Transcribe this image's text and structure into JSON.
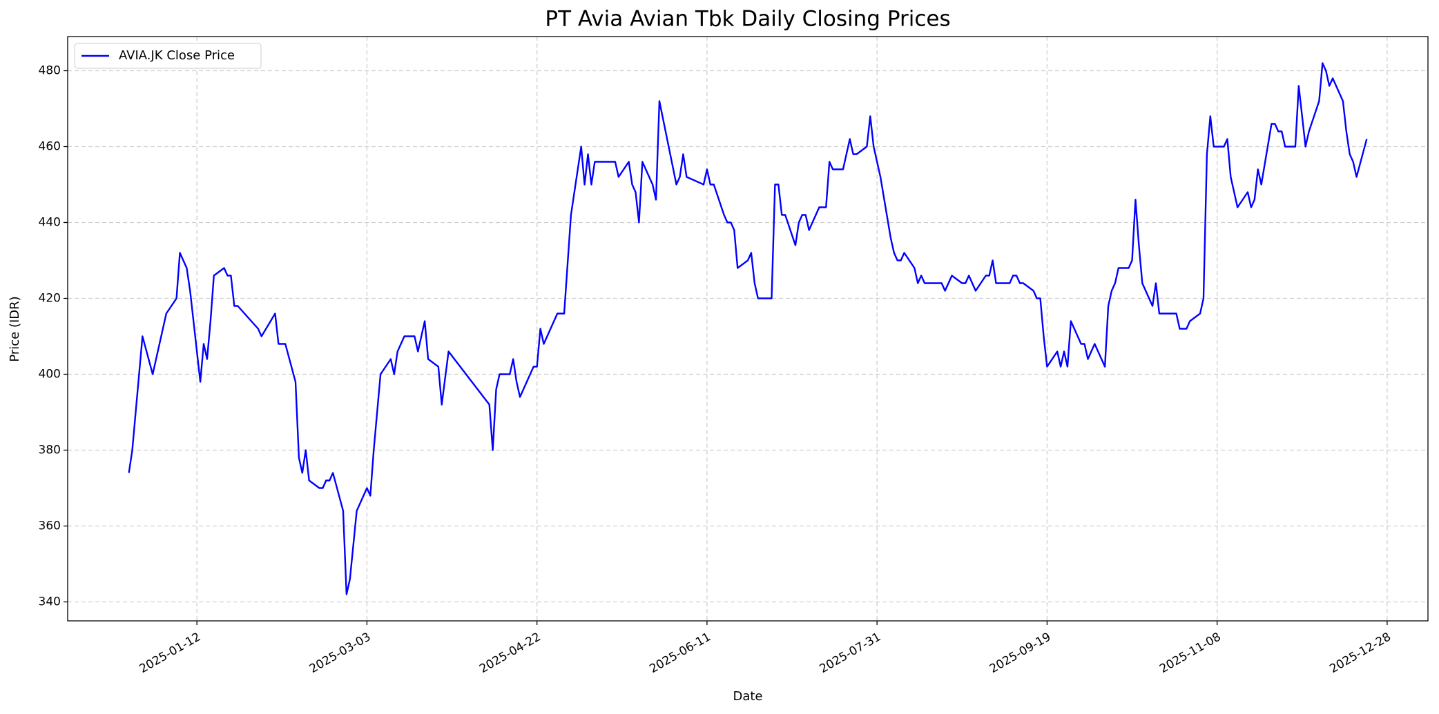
{
  "chart_data": {
    "type": "line",
    "title": "PT Avia Avian Tbk Daily Closing Prices",
    "x_label": "Date",
    "y_label": "Price (IDR)",
    "x": [
      "2024-12-23",
      "2024-12-24",
      "2024-12-27",
      "2024-12-30",
      "2025-01-03",
      "2025-01-06",
      "2025-01-07",
      "2025-01-09",
      "2025-01-10",
      "2025-01-13",
      "2025-01-14",
      "2025-01-15",
      "2025-01-16",
      "2025-01-17",
      "2025-01-20",
      "2025-01-21",
      "2025-01-22",
      "2025-01-23",
      "2025-01-24",
      "2025-01-30",
      "2025-01-31",
      "2025-02-04",
      "2025-02-05",
      "2025-02-07",
      "2025-02-10",
      "2025-02-11",
      "2025-02-12",
      "2025-02-13",
      "2025-02-14",
      "2025-02-17",
      "2025-02-18",
      "2025-02-19",
      "2025-02-20",
      "2025-02-21",
      "2025-02-24",
      "2025-02-25",
      "2025-02-26",
      "2025-02-28",
      "2025-03-03",
      "2025-03-04",
      "2025-03-05",
      "2025-03-07",
      "2025-03-10",
      "2025-03-11",
      "2025-03-12",
      "2025-03-14",
      "2025-03-17",
      "2025-03-18",
      "2025-03-20",
      "2025-03-21",
      "2025-03-24",
      "2025-03-25",
      "2025-03-27",
      "2025-04-08",
      "2025-04-09",
      "2025-04-10",
      "2025-04-11",
      "2025-04-14",
      "2025-04-15",
      "2025-04-16",
      "2025-04-17",
      "2025-04-21",
      "2025-04-22",
      "2025-04-23",
      "2025-04-24",
      "2025-04-28",
      "2025-04-30",
      "2025-05-02",
      "2025-05-05",
      "2025-05-06",
      "2025-05-07",
      "2025-05-08",
      "2025-05-09",
      "2025-05-15",
      "2025-05-16",
      "2025-05-19",
      "2025-05-20",
      "2025-05-21",
      "2025-05-22",
      "2025-05-23",
      "2025-05-26",
      "2025-05-27",
      "2025-05-28",
      "2025-06-02",
      "2025-06-03",
      "2025-06-04",
      "2025-06-05",
      "2025-06-10",
      "2025-06-11",
      "2025-06-12",
      "2025-06-13",
      "2025-06-16",
      "2025-06-17",
      "2025-06-18",
      "2025-06-19",
      "2025-06-20",
      "2025-06-23",
      "2025-06-24",
      "2025-06-25",
      "2025-06-26",
      "2025-06-30",
      "2025-07-01",
      "2025-07-02",
      "2025-07-03",
      "2025-07-04",
      "2025-07-07",
      "2025-07-08",
      "2025-07-09",
      "2025-07-10",
      "2025-07-11",
      "2025-07-14",
      "2025-07-16",
      "2025-07-17",
      "2025-07-18",
      "2025-07-21",
      "2025-07-23",
      "2025-07-24",
      "2025-07-25",
      "2025-07-28",
      "2025-07-29",
      "2025-07-30",
      "2025-08-01",
      "2025-08-04",
      "2025-08-05",
      "2025-08-06",
      "2025-08-07",
      "2025-08-08",
      "2025-08-11",
      "2025-08-12",
      "2025-08-13",
      "2025-08-14",
      "2025-08-19",
      "2025-08-20",
      "2025-08-22",
      "2025-08-25",
      "2025-08-26",
      "2025-08-27",
      "2025-08-29",
      "2025-09-01",
      "2025-09-02",
      "2025-09-03",
      "2025-09-04",
      "2025-09-08",
      "2025-09-09",
      "2025-09-10",
      "2025-09-11",
      "2025-09-12",
      "2025-09-15",
      "2025-09-16",
      "2025-09-17",
      "2025-09-18",
      "2025-09-19",
      "2025-09-22",
      "2025-09-23",
      "2025-09-24",
      "2025-09-25",
      "2025-09-26",
      "2025-09-29",
      "2025-09-30",
      "2025-10-01",
      "2025-10-03",
      "2025-10-06",
      "2025-10-07",
      "2025-10-08",
      "2025-10-09",
      "2025-10-10",
      "2025-10-13",
      "2025-10-14",
      "2025-10-15",
      "2025-10-16",
      "2025-10-17",
      "2025-10-20",
      "2025-10-21",
      "2025-10-22",
      "2025-10-27",
      "2025-10-28",
      "2025-10-30",
      "2025-10-31",
      "2025-11-03",
      "2025-11-04",
      "2025-11-05",
      "2025-11-06",
      "2025-11-07",
      "2025-11-10",
      "2025-11-11",
      "2025-11-12",
      "2025-11-14",
      "2025-11-17",
      "2025-11-18",
      "2025-11-19",
      "2025-11-20",
      "2025-11-21",
      "2025-11-24",
      "2025-11-25",
      "2025-11-26",
      "2025-11-27",
      "2025-11-28",
      "2025-12-01",
      "2025-12-02",
      "2025-12-04",
      "2025-12-05",
      "2025-12-08",
      "2025-12-09",
      "2025-12-10",
      "2025-12-11",
      "2025-12-12",
      "2025-12-15",
      "2025-12-16",
      "2025-12-17",
      "2025-12-18",
      "2025-12-19",
      "2025-12-22"
    ],
    "series": [
      {
        "name": "AVIA.JK Close Price",
        "color": "#0000ff",
        "values": [
          374,
          380,
          410,
          400,
          416,
          420,
          432,
          428,
          422,
          398,
          408,
          404,
          414,
          426,
          428,
          426,
          426,
          418,
          418,
          412,
          410,
          416,
          408,
          408,
          398,
          378,
          374,
          380,
          372,
          370,
          370,
          372,
          372,
          374,
          364,
          342,
          346,
          364,
          370,
          368,
          380,
          400,
          404,
          400,
          406,
          410,
          410,
          406,
          414,
          404,
          402,
          392,
          406,
          392,
          380,
          396,
          400,
          400,
          404,
          398,
          394,
          402,
          402,
          412,
          408,
          416,
          416,
          442,
          460,
          450,
          458,
          450,
          456,
          456,
          452,
          456,
          450,
          448,
          440,
          456,
          450,
          446,
          472,
          450,
          452,
          458,
          452,
          450,
          454,
          450,
          450,
          442,
          440,
          440,
          438,
          428,
          430,
          432,
          424,
          420,
          420,
          450,
          450,
          442,
          442,
          434,
          440,
          442,
          442,
          438,
          444,
          444,
          456,
          454,
          454,
          462,
          458,
          458,
          460,
          468,
          460,
          452,
          436,
          432,
          430,
          430,
          432,
          428,
          424,
          426,
          424,
          424,
          422,
          426,
          424,
          424,
          426,
          422,
          426,
          426,
          430,
          424,
          424,
          426,
          426,
          424,
          424,
          422,
          420,
          420,
          410,
          402,
          406,
          402,
          406,
          402,
          414,
          408,
          408,
          404,
          408,
          402,
          418,
          422,
          424,
          428,
          428,
          430,
          446,
          434,
          424,
          418,
          424,
          416,
          416,
          412,
          412,
          414,
          416,
          420,
          458,
          468,
          460,
          460,
          462,
          452,
          444,
          448,
          444,
          446,
          454,
          450,
          466,
          466,
          464,
          464,
          460,
          460,
          476,
          460,
          464,
          472,
          482,
          480,
          476,
          478,
          472,
          464,
          458,
          456,
          452,
          462
        ]
      }
    ],
    "xlim": [
      "2024-12-05",
      "2026-01-09"
    ],
    "xticks": [
      "2025-01-12",
      "2025-03-03",
      "2025-04-22",
      "2025-06-11",
      "2025-07-31",
      "2025-09-19",
      "2025-11-08",
      "2025-12-28"
    ],
    "ylim": [
      335,
      489
    ],
    "yticks": [
      340,
      360,
      380,
      400,
      420,
      440,
      460,
      480
    ],
    "grid": true,
    "legend": "upper left"
  }
}
